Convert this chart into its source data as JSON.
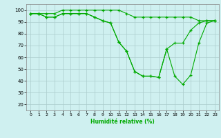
{
  "xlabel": "Humidité relative (%)",
  "background_color": "#cff0f0",
  "grid_color": "#aacccc",
  "line_color": "#00aa00",
  "marker": "+",
  "xlim": [
    -0.5,
    23.5
  ],
  "ylim": [
    15,
    105
  ],
  "yticks": [
    20,
    30,
    40,
    50,
    60,
    70,
    80,
    90,
    100
  ],
  "xticks": [
    0,
    1,
    2,
    3,
    4,
    5,
    6,
    7,
    8,
    9,
    10,
    11,
    12,
    13,
    14,
    15,
    16,
    17,
    18,
    19,
    20,
    21,
    22,
    23
  ],
  "series": [
    [
      97,
      97,
      97,
      97,
      100,
      100,
      100,
      100,
      100,
      100,
      100,
      100,
      97,
      94,
      94,
      94,
      94,
      94,
      94,
      94,
      94,
      91,
      91,
      91
    ],
    [
      97,
      97,
      94,
      94,
      97,
      97,
      97,
      97,
      94,
      91,
      89,
      73,
      65,
      48,
      44,
      44,
      43,
      67,
      72,
      72,
      83,
      89,
      91,
      91
    ],
    [
      97,
      97,
      94,
      94,
      97,
      97,
      97,
      97,
      94,
      91,
      89,
      73,
      65,
      48,
      44,
      44,
      43,
      67,
      44,
      37,
      45,
      72,
      89,
      91
    ]
  ]
}
